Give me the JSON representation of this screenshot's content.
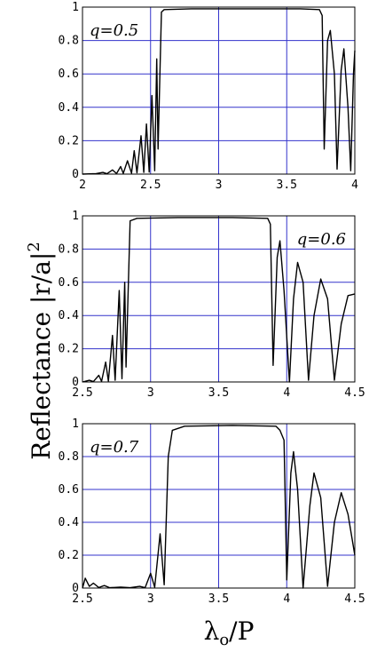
{
  "figure": {
    "ylabel_main": "Reflectance ",
    "ylabel_abs": "|r/a|",
    "ylabel_sup": "2",
    "xlabel_lambda": "λ",
    "xlabel_sub": "o",
    "xlabel_rest": "/P"
  },
  "colors": {
    "grid": "#3333cc",
    "curve": "#000000",
    "frame": "#000000"
  },
  "chart_data": [
    {
      "type": "line",
      "annotation": "q=0.5",
      "annotation_pos": "top-left",
      "xlim": [
        2,
        4
      ],
      "ylim": [
        0,
        1
      ],
      "x_ticks": [
        "2",
        "2.5",
        "3",
        "3.5",
        "4"
      ],
      "y_ticks": [
        "0",
        "0.2",
        "0.4",
        "0.6",
        "0.8",
        "1"
      ],
      "grid": true,
      "band": [
        2.55,
        3.76
      ],
      "edge_peak_left": 0.69,
      "edge_peak_right": 0.86,
      "points": [
        [
          2.0,
          0.0
        ],
        [
          2.1,
          0.003
        ],
        [
          2.15,
          0.01
        ],
        [
          2.18,
          0.002
        ],
        [
          2.22,
          0.025
        ],
        [
          2.25,
          0.003
        ],
        [
          2.28,
          0.045
        ],
        [
          2.3,
          0.004
        ],
        [
          2.33,
          0.08
        ],
        [
          2.36,
          0.006
        ],
        [
          2.38,
          0.14
        ],
        [
          2.4,
          0.008
        ],
        [
          2.43,
          0.23
        ],
        [
          2.45,
          0.01
        ],
        [
          2.47,
          0.3
        ],
        [
          2.49,
          0.012
        ],
        [
          2.51,
          0.47
        ],
        [
          2.53,
          0.02
        ],
        [
          2.545,
          0.69
        ],
        [
          2.555,
          0.15
        ],
        [
          2.58,
          0.97
        ],
        [
          2.6,
          0.985
        ],
        [
          2.8,
          0.99
        ],
        [
          3.2,
          0.99
        ],
        [
          3.6,
          0.99
        ],
        [
          3.74,
          0.985
        ],
        [
          3.76,
          0.95
        ],
        [
          3.775,
          0.15
        ],
        [
          3.8,
          0.8
        ],
        [
          3.82,
          0.86
        ],
        [
          3.85,
          0.6
        ],
        [
          3.87,
          0.03
        ],
        [
          3.9,
          0.62
        ],
        [
          3.92,
          0.75
        ],
        [
          3.95,
          0.4
        ],
        [
          3.97,
          0.02
        ],
        [
          3.99,
          0.6
        ],
        [
          4.0,
          0.74
        ]
      ]
    },
    {
      "type": "line",
      "annotation": "q=0.6",
      "annotation_pos": "top-right",
      "xlim": [
        2.5,
        4.5
      ],
      "ylim": [
        0,
        1
      ],
      "x_ticks": [
        "2.5",
        "3",
        "3.5",
        "4",
        "4.5"
      ],
      "y_ticks": [
        "0",
        "0.2",
        "0.4",
        "0.6",
        "0.8",
        "1"
      ],
      "grid": true,
      "points": [
        [
          2.5,
          0.0
        ],
        [
          2.55,
          0.01
        ],
        [
          2.58,
          0.002
        ],
        [
          2.62,
          0.04
        ],
        [
          2.64,
          0.003
        ],
        [
          2.67,
          0.12
        ],
        [
          2.69,
          0.005
        ],
        [
          2.72,
          0.28
        ],
        [
          2.74,
          0.01
        ],
        [
          2.77,
          0.55
        ],
        [
          2.79,
          0.02
        ],
        [
          2.81,
          0.6
        ],
        [
          2.82,
          0.09
        ],
        [
          2.85,
          0.97
        ],
        [
          2.9,
          0.985
        ],
        [
          3.2,
          0.99
        ],
        [
          3.6,
          0.99
        ],
        [
          3.86,
          0.985
        ],
        [
          3.88,
          0.95
        ],
        [
          3.9,
          0.1
        ],
        [
          3.93,
          0.75
        ],
        [
          3.95,
          0.85
        ],
        [
          3.98,
          0.55
        ],
        [
          4.02,
          0.0
        ],
        [
          4.05,
          0.5
        ],
        [
          4.08,
          0.72
        ],
        [
          4.12,
          0.6
        ],
        [
          4.16,
          0.01
        ],
        [
          4.2,
          0.4
        ],
        [
          4.25,
          0.62
        ],
        [
          4.3,
          0.5
        ],
        [
          4.35,
          0.01
        ],
        [
          4.4,
          0.35
        ],
        [
          4.45,
          0.52
        ],
        [
          4.5,
          0.53
        ]
      ]
    },
    {
      "type": "line",
      "annotation": "q=0.7",
      "annotation_pos": "top-left",
      "xlim": [
        2.5,
        4.5
      ],
      "ylim": [
        0,
        1
      ],
      "x_ticks": [
        "2.5",
        "3",
        "3.5",
        "4",
        "4.5"
      ],
      "y_ticks": [
        "0",
        "0.2",
        "0.4",
        "0.6",
        "0.8",
        "1"
      ],
      "grid": true,
      "points": [
        [
          2.5,
          0.0
        ],
        [
          2.52,
          0.06
        ],
        [
          2.55,
          0.01
        ],
        [
          2.58,
          0.03
        ],
        [
          2.62,
          0.003
        ],
        [
          2.66,
          0.015
        ],
        [
          2.7,
          0.002
        ],
        [
          2.78,
          0.006
        ],
        [
          2.85,
          0.002
        ],
        [
          2.92,
          0.01
        ],
        [
          2.96,
          0.002
        ],
        [
          3.0,
          0.09
        ],
        [
          3.03,
          0.005
        ],
        [
          3.07,
          0.33
        ],
        [
          3.1,
          0.02
        ],
        [
          3.13,
          0.8
        ],
        [
          3.16,
          0.96
        ],
        [
          3.25,
          0.985
        ],
        [
          3.6,
          0.99
        ],
        [
          3.92,
          0.985
        ],
        [
          3.95,
          0.96
        ],
        [
          3.98,
          0.9
        ],
        [
          4.0,
          0.05
        ],
        [
          4.03,
          0.7
        ],
        [
          4.05,
          0.83
        ],
        [
          4.08,
          0.6
        ],
        [
          4.12,
          0.0
        ],
        [
          4.17,
          0.5
        ],
        [
          4.2,
          0.7
        ],
        [
          4.25,
          0.55
        ],
        [
          4.3,
          0.01
        ],
        [
          4.35,
          0.4
        ],
        [
          4.4,
          0.58
        ],
        [
          4.45,
          0.45
        ],
        [
          4.5,
          0.2
        ]
      ]
    }
  ]
}
